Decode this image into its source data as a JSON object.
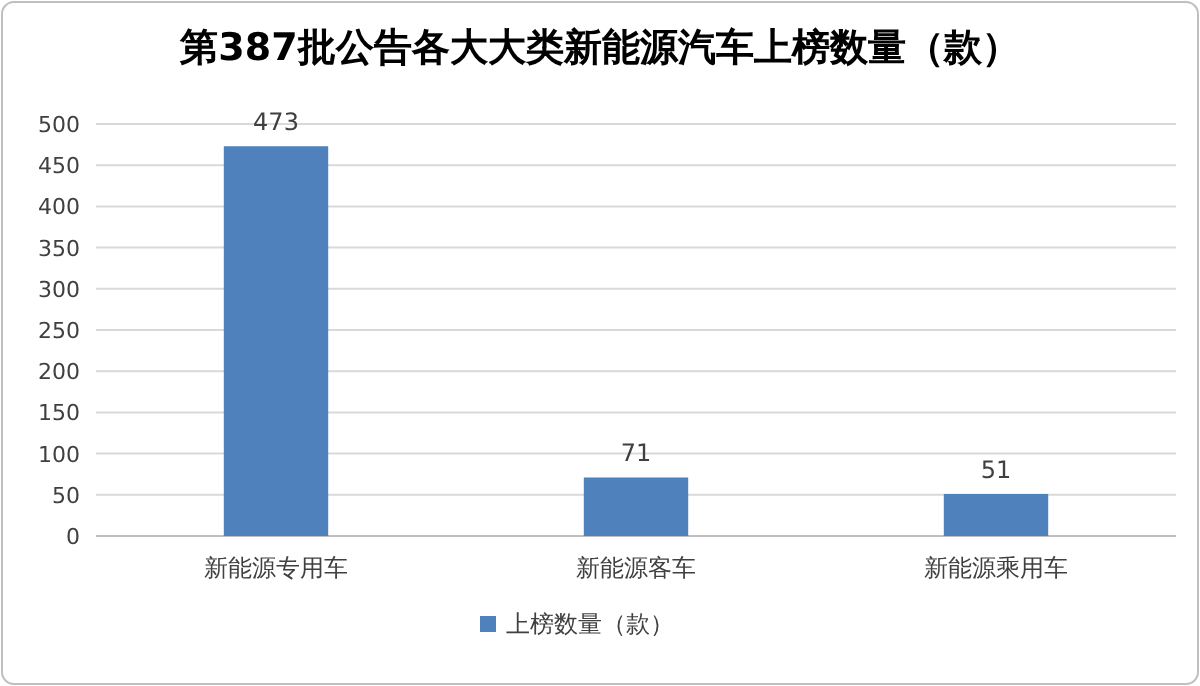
{
  "chart_data": {
    "type": "bar",
    "title": "第387批公告各大大类新能源汽车上榜数量（款）",
    "categories": [
      "新能源专用车",
      "新能源客车",
      "新能源乘用车"
    ],
    "series": [
      {
        "name": "上榜数量（款）",
        "color": "#4f81bd",
        "values": [
          473,
          71,
          51
        ]
      }
    ],
    "ylim": [
      0,
      500
    ],
    "yticks": [
      0,
      50,
      100,
      150,
      200,
      250,
      300,
      350,
      400,
      450,
      500
    ],
    "grid": "y",
    "legend": "bottom",
    "data_labels": true
  }
}
